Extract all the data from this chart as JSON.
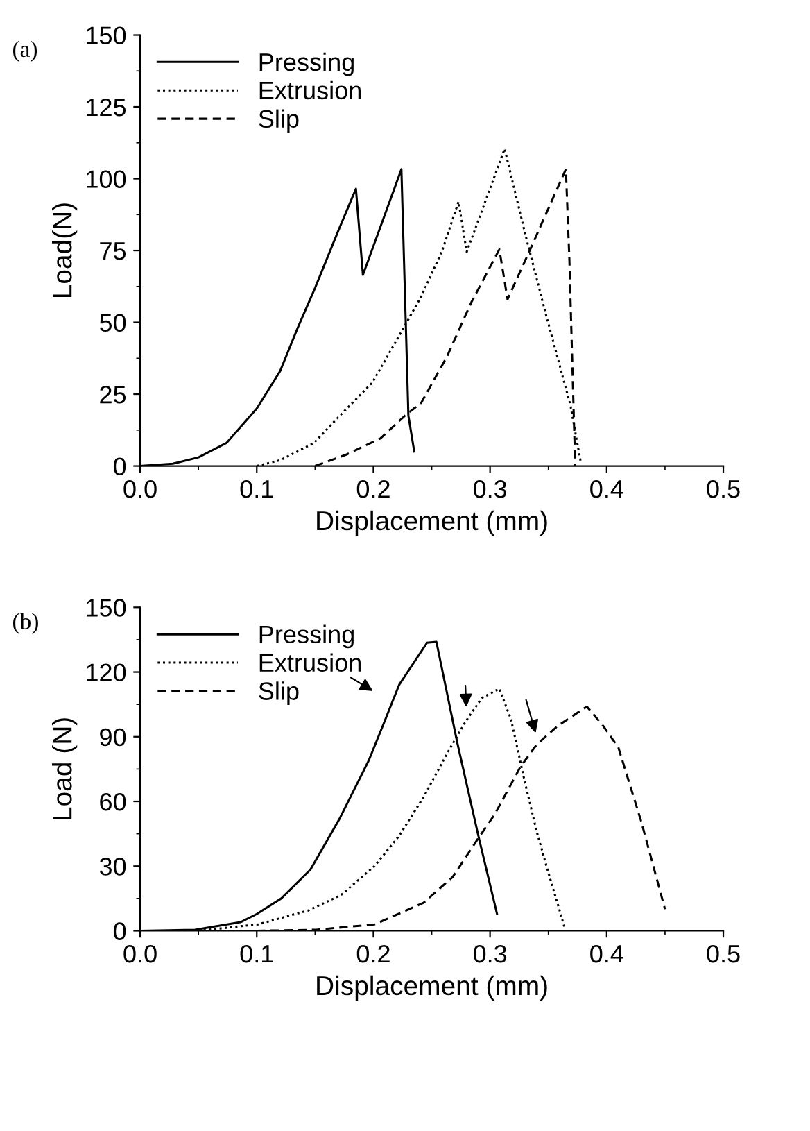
{
  "chart_data": [
    {
      "type": "line",
      "xlabel": "Displacement (mm)",
      "ylabel": "Load(N)",
      "annotations": [
        "(a)"
      ],
      "legend": "top left",
      "grid": false,
      "xlim": [
        0,
        0.5
      ],
      "xticks": [
        {
          "value": 0,
          "label": "0.0"
        },
        {
          "value": 0.1,
          "label": "0.1"
        },
        {
          "value": 0.2,
          "label": "0.2"
        },
        {
          "value": 0.3,
          "label": "0.3"
        },
        {
          "value": 0.4,
          "label": "0.4"
        },
        {
          "value": 0.5,
          "label": "0.5"
        }
      ],
      "ylim": [
        0,
        150
      ],
      "yticks": [
        0,
        25,
        50,
        75,
        100,
        125,
        150
      ],
      "series": [
        {
          "name": "Pressing",
          "color": "#000000",
          "line_style": "solid",
          "x": [
            0,
            0.028,
            0.05,
            0.074,
            0.1,
            0.12,
            0.135,
            0.15,
            0.17,
            0.185,
            0.191,
            0.224,
            0.23,
            0.235
          ],
          "values": [
            0,
            0.8,
            3,
            8,
            20,
            33,
            48,
            62,
            82,
            96.5,
            66.5,
            103.3,
            17.5,
            5
          ]
        },
        {
          "name": "Extrusion",
          "color": "#000000",
          "line_style": "dotted",
          "x": [
            0.1,
            0.12,
            0.149,
            0.17,
            0.199,
            0.223,
            0.241,
            0.259,
            0.273,
            0.28,
            0.3125,
            0.33,
            0.348,
            0.369,
            0.378
          ],
          "values": [
            0,
            2,
            8,
            17,
            29,
            46,
            59,
            75,
            92,
            74.5,
            110.4,
            81,
            52.6,
            21,
            0.8
          ]
        },
        {
          "name": "Slip",
          "color": "#000000",
          "line_style": "dashed",
          "x": [
            0.15,
            0.177,
            0.206,
            0.227,
            0.241,
            0.263,
            0.284,
            0.308,
            0.315,
            0.334,
            0.365,
            0.368,
            0.373
          ],
          "values": [
            0,
            4,
            9.6,
            17.5,
            22,
            38,
            57,
            75.4,
            58,
            75,
            103.3,
            72,
            0
          ]
        }
      ]
    },
    {
      "type": "line",
      "xlabel": "Displacement (mm)",
      "ylabel": "Load (N)",
      "legend": "top left",
      "grid": false,
      "annotations": [
        "(b)"
      ],
      "xlim": [
        0,
        0.5
      ],
      "xticks": [
        {
          "value": 0,
          "label": "0.0"
        },
        {
          "value": 0.1,
          "label": "0.1"
        },
        {
          "value": 0.2,
          "label": "0.2"
        },
        {
          "value": 0.3,
          "label": "0.3"
        },
        {
          "value": 0.4,
          "label": "0.4"
        },
        {
          "value": 0.5,
          "label": "0.5"
        }
      ],
      "ylim": [
        0,
        150
      ],
      "yticks": [
        0,
        30,
        60,
        90,
        120,
        150
      ],
      "series": [
        {
          "name": "Pressing",
          "color": "#000000",
          "line_style": "solid",
          "x": [
            0,
            0.047,
            0.086,
            0.1,
            0.121,
            0.146,
            0.171,
            0.196,
            0.208,
            0.222,
            0.246,
            0.254,
            0.272,
            0.29,
            0.306
          ],
          "values": [
            0,
            0.5,
            4,
            7.8,
            15,
            28.4,
            52,
            79,
            95,
            114,
            133.6,
            134,
            87,
            44,
            7.8
          ]
        },
        {
          "name": "Extrusion",
          "color": "#000000",
          "line_style": "dotted",
          "x": [
            0.05,
            0.101,
            0.144,
            0.172,
            0.201,
            0.222,
            0.243,
            0.265,
            0.279,
            0.293,
            0.308,
            0.318,
            0.329,
            0.34,
            0.35,
            0.364
          ],
          "values": [
            0,
            3,
            9.4,
            16.5,
            30,
            44,
            62,
            84,
            97,
            108,
            112.3,
            98,
            71,
            46,
            27,
            1.4
          ]
        },
        {
          "name": "Slip",
          "color": "#000000",
          "line_style": "dashed",
          "x": [
            0.1,
            0.151,
            0.201,
            0.243,
            0.268,
            0.29,
            0.304,
            0.326,
            0.34,
            0.358,
            0.383,
            0.397,
            0.41,
            0.43,
            0.45
          ],
          "values": [
            0,
            0.5,
            3,
            13,
            25,
            43,
            54,
            76,
            86.4,
            95,
            104,
            95,
            85,
            50,
            10
          ]
        }
      ]
    }
  ]
}
